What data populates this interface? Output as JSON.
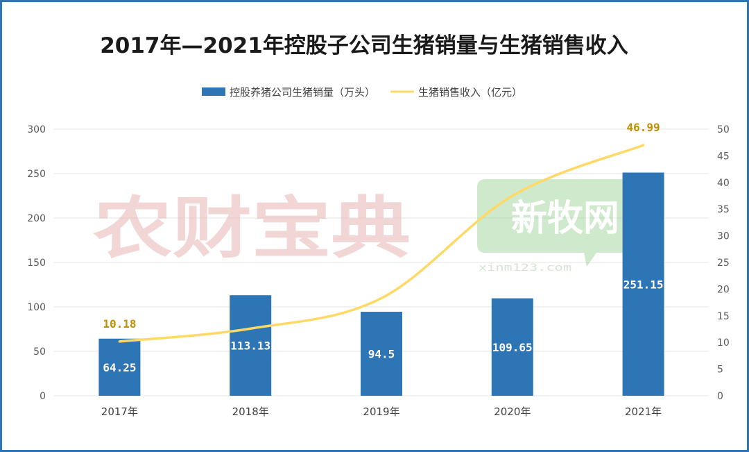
{
  "chart_data": {
    "type": "bar",
    "title": "2017年—2021年控股子公司生猪销量与生猪销售收入",
    "categories": [
      "2017年",
      "2018年",
      "2019年",
      "2020年",
      "2021年"
    ],
    "series": [
      {
        "name": "控股养猪公司生猪销量（万头）",
        "type": "bar",
        "axis": "left",
        "values": [
          64.25,
          113.13,
          94.5,
          109.65,
          251.15
        ],
        "labels": [
          "64.25",
          "113.13",
          "94.5",
          "109.65",
          "251.15"
        ]
      },
      {
        "name": "生猪销售收入（亿元）",
        "type": "line",
        "axis": "right",
        "values": [
          10.18,
          12.6,
          18.3,
          37.5,
          46.99
        ],
        "labels": [
          "10.18",
          "",
          "",
          "",
          "46.99"
        ]
      }
    ],
    "y_left": {
      "min": 0,
      "max": 300,
      "step": 50,
      "ticks": [
        "0",
        "50",
        "100",
        "150",
        "200",
        "250",
        "300"
      ]
    },
    "y_right": {
      "min": 0,
      "max": 50,
      "step": 5,
      "ticks": [
        "0",
        "5",
        "10",
        "15",
        "20",
        "25",
        "30",
        "35",
        "40",
        "45",
        "50"
      ]
    },
    "grid": true,
    "legend": "top-center"
  },
  "colors": {
    "bar": "#2e75b6",
    "line": "#ffd966",
    "line_label": "#c09000",
    "grid": "#e6e6e6",
    "frame": "#2e75b6"
  },
  "watermarks": {
    "brand1": "农财宝典",
    "brand2": "新牧网",
    "brand2_url": "xinm123.com"
  }
}
